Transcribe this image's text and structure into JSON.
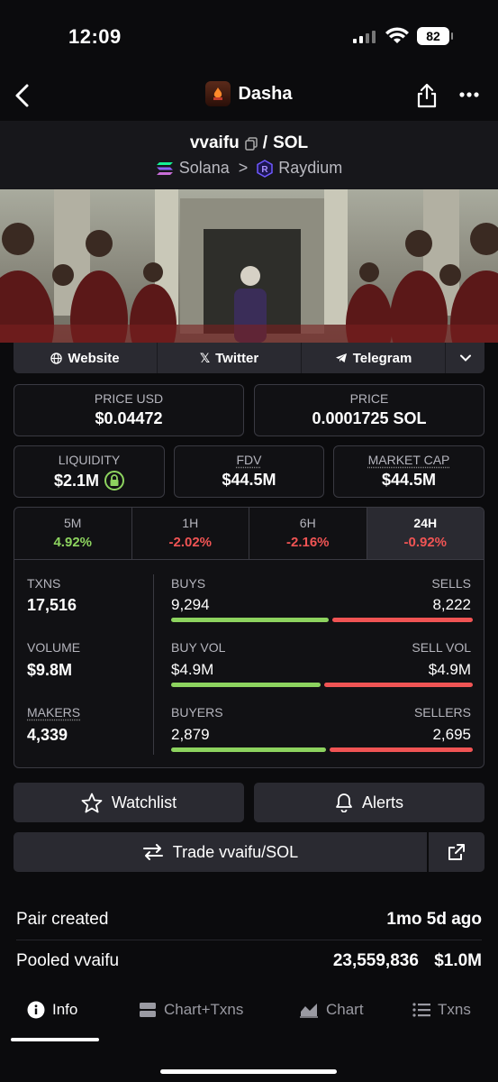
{
  "status_bar": {
    "time": "12:09",
    "battery": "82"
  },
  "header": {
    "title": "Dasha"
  },
  "pair": {
    "base": "vvaifu",
    "separator": "/",
    "quote": "SOL",
    "chain": "Solana",
    "dex": "Raydium"
  },
  "links": {
    "website": "Website",
    "twitter": "Twitter",
    "telegram": "Telegram"
  },
  "price": {
    "usd_label": "PRICE USD",
    "usd_value": "$0.04472",
    "native_label": "PRICE",
    "native_value": "0.0001725 SOL"
  },
  "metrics": {
    "liquidity_label": "LIQUIDITY",
    "liquidity_value": "$2.1M",
    "fdv_label": "FDV",
    "fdv_value": "$44.5M",
    "mcap_label": "MARKET CAP",
    "mcap_value": "$44.5M"
  },
  "timeframes": [
    {
      "label": "5M",
      "change": "4.92%"
    },
    {
      "label": "1H",
      "change": "-2.02%"
    },
    {
      "label": "6H",
      "change": "-2.16%"
    },
    {
      "label": "24H",
      "change": "-0.92%"
    }
  ],
  "stats": {
    "txns_label": "TXNS",
    "txns_value": "17,516",
    "volume_label": "VOLUME",
    "volume_value": "$9.8M",
    "makers_label": "MAKERS",
    "makers_value": "4,339",
    "buys_label": "BUYS",
    "buys_value": "9,294",
    "sells_label": "SELLS",
    "sells_value": "8,222",
    "buys_fraction": 0.53,
    "buyvol_label": "BUY VOL",
    "buyvol_value": "$4.9M",
    "sellvol_label": "SELL VOL",
    "sellvol_value": "$4.9M",
    "buyvol_fraction": 0.5,
    "buyers_label": "BUYERS",
    "buyers_value": "2,879",
    "sellers_label": "SELLERS",
    "sellers_value": "2,695",
    "buyers_fraction": 0.52
  },
  "actions": {
    "watchlist": "Watchlist",
    "alerts": "Alerts",
    "trade": "Trade vvaifu/SOL"
  },
  "info_rows": [
    {
      "label": "Pair created",
      "value": "1mo 5d ago",
      "value2": ""
    },
    {
      "label": "Pooled vvaifu",
      "value": "23,559,836",
      "value2": "$1.0M"
    }
  ],
  "tabs": {
    "info": "Info",
    "chart_txns": "Chart+Txns",
    "chart": "Chart",
    "txns": "Txns"
  },
  "colors": {
    "green": "#8dd35f",
    "red": "#f05454"
  }
}
